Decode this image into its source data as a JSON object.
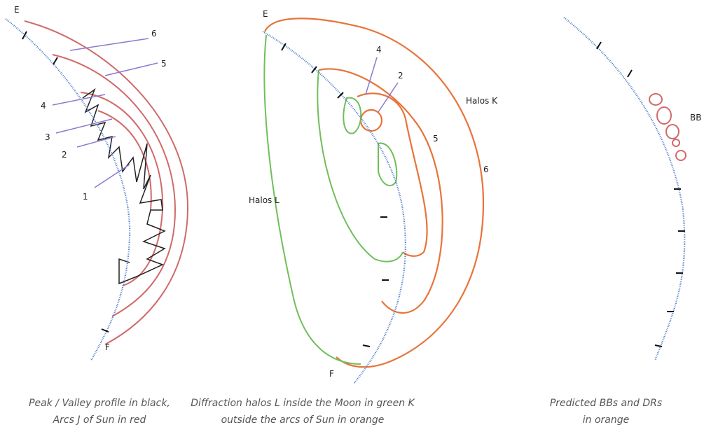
{
  "panels": [
    {
      "labels": {
        "e": "E",
        "six": "6",
        "five": "5",
        "four": "4",
        "three": "3",
        "two": "2",
        "one": "1",
        "f": "F"
      },
      "caption": [
        "Peak / Valley profile in black,",
        "Arcs J of Sun in red"
      ]
    },
    {
      "labels": {
        "e": "E",
        "four": "4",
        "two": "2",
        "halos_k": "Halos K",
        "five": "5",
        "six": "6",
        "halos_l": "Halos L",
        "f": "F"
      },
      "caption": [
        "Diffraction halos L inside the Moon in green K",
        "outside the arcs of Sun in orange"
      ]
    },
    {
      "labels": {
        "bb": "BB"
      },
      "caption": [
        "Predicted BBs and DRs",
        "in orange"
      ]
    }
  ]
}
